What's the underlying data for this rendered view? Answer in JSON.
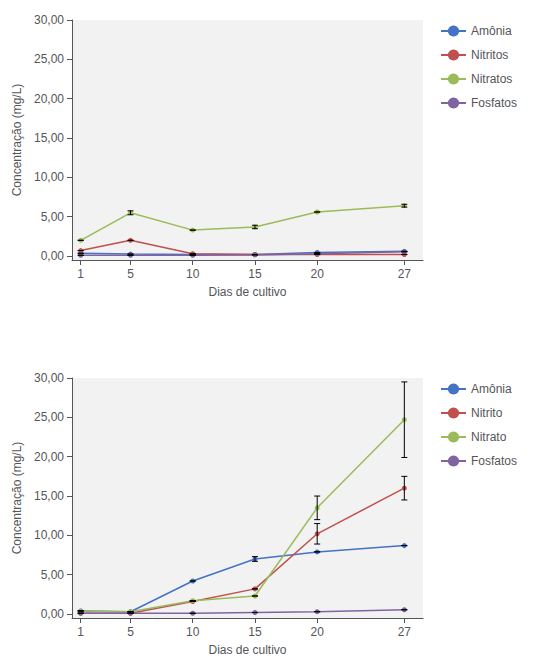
{
  "chart_data": [
    {
      "type": "line",
      "x": [
        1,
        5,
        10,
        15,
        20,
        27
      ],
      "xlabel": "Dias de cultivo",
      "ylabel": "Concentração (mg/L)",
      "xlim": [
        0.3,
        28.5
      ],
      "xticks": [
        1,
        5,
        10,
        15,
        20,
        27
      ],
      "ylim": [
        -0.5,
        30
      ],
      "yticks": [
        {
          "value": 0,
          "label": "0,00"
        },
        {
          "value": 5.0,
          "label": "5,00"
        },
        {
          "value": 10.0,
          "label": "10,00"
        },
        {
          "value": 15.0,
          "label": "15,00"
        },
        {
          "value": 20.0,
          "label": "20,00"
        },
        {
          "value": 25.0,
          "label": "25,00"
        },
        {
          "value": 30.0,
          "label": "30,00"
        }
      ],
      "grid": false,
      "legend": "right",
      "marker": "circle",
      "series": [
        {
          "name": "Amônia",
          "color": "#4472C4",
          "values": [
            0.35,
            0.25,
            0.2,
            0.2,
            0.45,
            0.6
          ],
          "errors": [
            0.0,
            0.0,
            0.0,
            0.0,
            0.0,
            0.0
          ]
        },
        {
          "name": "Nitritos",
          "color": "#C0504D",
          "values": [
            0.7,
            2.0,
            0.3,
            0.2,
            0.2,
            0.2
          ],
          "errors": [
            0.0,
            0.0,
            0.0,
            0.0,
            0.0,
            0.0
          ]
        },
        {
          "name": "Nitratos",
          "color": "#9BBB59",
          "values": [
            2.0,
            5.5,
            3.3,
            3.7,
            5.6,
            6.4
          ],
          "errors": [
            0.0,
            0.25,
            0.0,
            0.22,
            0.0,
            0.18
          ]
        },
        {
          "name": "Fosfatos",
          "color": "#8064A2",
          "values": [
            0.1,
            0.1,
            0.1,
            0.15,
            0.3,
            0.55
          ],
          "errors": [
            0.0,
            0.0,
            0.0,
            0.0,
            0.0,
            0.0
          ]
        }
      ]
    },
    {
      "type": "line",
      "x": [
        1,
        5,
        10,
        15,
        20,
        27
      ],
      "xlabel": "Dias de cultivo",
      "ylabel": "Concentração (mg/L)",
      "xlim": [
        0.3,
        28.5
      ],
      "xticks": [
        1,
        5,
        10,
        15,
        20,
        27
      ],
      "ylim": [
        -0.5,
        30
      ],
      "yticks": [
        {
          "value": 0,
          "label": "0,00"
        },
        {
          "value": 5.0,
          "label": "5,00"
        },
        {
          "value": 10.0,
          "label": "10,00"
        },
        {
          "value": 15.0,
          "label": "15,00"
        },
        {
          "value": 20.0,
          "label": "20,00"
        },
        {
          "value": 25.0,
          "label": "25,00"
        },
        {
          "value": 30.0,
          "label": "30,00"
        }
      ],
      "grid": false,
      "legend": "right",
      "marker": "circle",
      "series": [
        {
          "name": "Amônia",
          "color": "#4472C4",
          "values": [
            0.4,
            0.3,
            4.2,
            7.0,
            7.9,
            8.7
          ],
          "errors": [
            0.0,
            0.0,
            0.0,
            0.3,
            0.0,
            0.0
          ]
        },
        {
          "name": "Nitrito",
          "color": "#C0504D",
          "values": [
            0.1,
            0.1,
            1.6,
            3.2,
            10.2,
            16.0
          ],
          "errors": [
            0.0,
            0.0,
            0.0,
            0.0,
            1.3,
            1.5
          ]
        },
        {
          "name": "Nitrato",
          "color": "#9BBB59",
          "values": [
            0.4,
            0.3,
            1.7,
            2.3,
            13.5,
            24.7
          ],
          "errors": [
            0.0,
            0.0,
            0.0,
            0.0,
            1.5,
            4.8
          ]
        },
        {
          "name": "Fosfatos",
          "color": "#8064A2",
          "values": [
            0.1,
            0.1,
            0.1,
            0.2,
            0.3,
            0.55
          ],
          "errors": [
            0.0,
            0.0,
            0.0,
            0.0,
            0.0,
            0.0
          ]
        }
      ]
    }
  ]
}
